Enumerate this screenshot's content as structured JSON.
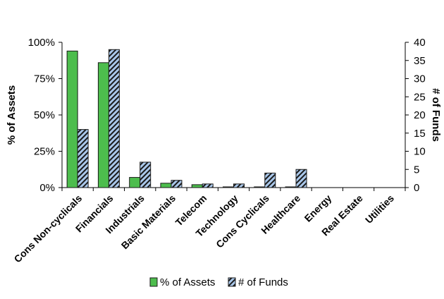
{
  "chart_data": {
    "type": "bar",
    "categories": [
      "Cons Non-cyclicals",
      "Financials",
      "Industrials",
      "Basic Materials",
      "Telecom",
      "Technology",
      "Cons Cyclicals",
      "Healthcare",
      "Energy",
      "Real Estate",
      "Utilities"
    ],
    "series": [
      {
        "name": "% of Assets",
        "axis": "left",
        "color": "#4dbd4d",
        "pattern": "solid",
        "values": [
          94,
          86,
          7,
          3,
          2,
          0.5,
          0.5,
          0.5,
          0,
          0,
          0
        ]
      },
      {
        "name": "# of Funds",
        "axis": "right",
        "color": "#a9c7ea",
        "pattern": "diagonal-stripes",
        "values": [
          16,
          38,
          7,
          2,
          1,
          1,
          4,
          5,
          0,
          0,
          0
        ]
      }
    ],
    "y_left": {
      "label": "% of Assets",
      "ylim": [
        0,
        100
      ],
      "ticks": [
        "0%",
        "25%",
        "50%",
        "75%",
        "100%"
      ],
      "tick_values": [
        0,
        25,
        50,
        75,
        100
      ]
    },
    "y_right": {
      "label": "# of Funds",
      "ylim": [
        0,
        40
      ],
      "ticks": [
        "0",
        "5",
        "10",
        "15",
        "20",
        "25",
        "30",
        "35",
        "40"
      ],
      "tick_values": [
        0,
        5,
        10,
        15,
        20,
        25,
        30,
        35,
        40
      ]
    },
    "grid": false,
    "legend_placement": "bottom"
  }
}
